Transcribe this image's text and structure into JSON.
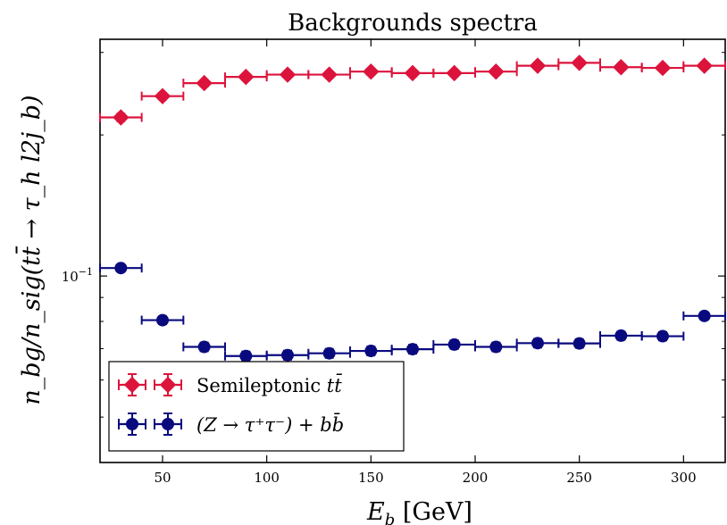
{
  "chart_data": {
    "type": "scatter",
    "title": "Backgrounds spectra",
    "xlabel": {
      "main": "E",
      "sub": "b",
      "unit": " [GeV]"
    },
    "ylabel": {
      "text": "n_bg/n_sig(tt̄ → τ_h l2j_b)"
    },
    "xlim": [
      20,
      320
    ],
    "ylim": [
      0.04,
      0.32
    ],
    "yscale": "log",
    "x_ticks": [
      50,
      100,
      150,
      200,
      250,
      300
    ],
    "y_tick_labels": [
      {
        "value": 0.1,
        "base": "10",
        "exp": "−1"
      }
    ],
    "grid": false,
    "legend_position": "lower-left",
    "series": [
      {
        "name": "Semileptonic tt̄",
        "legend_label": {
          "text": "Semileptonic ",
          "math": "tt̄"
        },
        "color": "#DC143C",
        "marker": "diamond",
        "x": [
          30,
          50,
          70,
          90,
          110,
          130,
          150,
          170,
          190,
          210,
          230,
          250,
          270,
          290,
          310
        ],
        "x_err": 10,
        "y": [
          0.218,
          0.242,
          0.258,
          0.266,
          0.269,
          0.269,
          0.273,
          0.271,
          0.271,
          0.273,
          0.281,
          0.285,
          0.279,
          0.278,
          0.281
        ],
        "y_err": [
          0.004,
          0.004,
          0.004,
          0.004,
          0.004,
          0.004,
          0.004,
          0.004,
          0.004,
          0.004,
          0.004,
          0.004,
          0.004,
          0.004,
          0.004
        ]
      },
      {
        "name": "(Z → τ⁺τ⁻) + bb̄",
        "legend_label": {
          "text": "",
          "math": "(Z → τ⁺τ⁻) + bb̄"
        },
        "color": "#0A0A7F",
        "marker": "circle",
        "x": [
          30,
          50,
          70,
          90,
          110,
          130,
          150,
          170,
          190,
          210,
          230,
          250,
          270,
          290,
          310
        ],
        "x_err": 10,
        "y": [
          0.104,
          0.0805,
          0.0706,
          0.0675,
          0.0678,
          0.0684,
          0.0692,
          0.0698,
          0.0714,
          0.0706,
          0.0719,
          0.0718,
          0.0746,
          0.0744,
          0.0822
        ],
        "y_err": [
          0.0015,
          0.0015,
          0.0015,
          0.0015,
          0.0015,
          0.0015,
          0.0015,
          0.0015,
          0.0015,
          0.0015,
          0.0015,
          0.0015,
          0.0015,
          0.0015,
          0.0015
        ]
      }
    ]
  }
}
